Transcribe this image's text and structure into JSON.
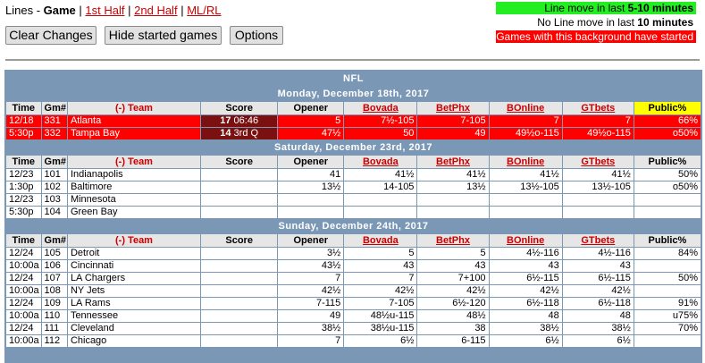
{
  "nav": {
    "lines_prefix": "Lines - ",
    "game": "Game",
    "sep": "|",
    "first_half": "1st Half",
    "second_half": "2nd Half",
    "ml_rl": "ML/RL"
  },
  "buttons": {
    "clear": "Clear Changes",
    "hide": "Hide started games",
    "options": "Options"
  },
  "legend": {
    "line1": "Line move in last 5-10 minutes",
    "line2": "No Line move in last 10 minutes",
    "line3": "Games with this background have started"
  },
  "colors": {
    "recent_move": "#22ee22",
    "started": "#ff0000",
    "section": "#7a97b5",
    "public_highlight": "#ffff00"
  },
  "league": "NFL",
  "headers": {
    "time": "Time",
    "gm": "Gm#",
    "team": "(-) Team",
    "score": "Score",
    "opener": "Opener",
    "bovada": "Bovada",
    "betphx": "BetPhx",
    "bonline": "BOnline",
    "gtbets": "GTbets",
    "public": "Public%"
  },
  "sections": [
    {
      "date": "Monday, December 18th, 2017",
      "games": [
        {
          "started": true,
          "rows": [
            {
              "time": "12/18",
              "gm": "331",
              "team": "Atlanta",
              "score_pts": "17",
              "score_clock": "06:46",
              "opener": "5",
              "bovada": "7½-105",
              "betphx": "7-105",
              "bonline": "7",
              "gtbets": "7",
              "public": "66%"
            },
            {
              "time": "5:30p",
              "gm": "332",
              "team": "Tampa Bay",
              "score_pts": "14",
              "score_clock": "3rd Q",
              "opener": "47½",
              "bovada": "50",
              "betphx": "49",
              "bonline": "49½o-115",
              "gtbets": "49½o-115",
              "public": "o50%"
            }
          ]
        }
      ]
    },
    {
      "date": "Saturday, December 23rd, 2017",
      "games": [
        {
          "started": false,
          "rows": [
            {
              "time": "12/23",
              "gm": "101",
              "team": "Indianapolis",
              "score_pts": "",
              "score_clock": "",
              "opener": "41",
              "bovada": "41½",
              "betphx": "41½",
              "bonline": "41½",
              "gtbets": "41½",
              "public": "50%"
            },
            {
              "time": "1:30p",
              "gm": "102",
              "team": "Baltimore",
              "score_pts": "",
              "score_clock": "",
              "opener": "13½",
              "bovada": "14-105",
              "betphx": "13½",
              "bonline": "13½-105",
              "gtbets": "13½-105",
              "public": "o50%"
            }
          ]
        },
        {
          "started": false,
          "rows": [
            {
              "time": "12/23",
              "gm": "103",
              "team": "Minnesota",
              "score_pts": "",
              "score_clock": "",
              "opener": "",
              "bovada": "",
              "betphx": "",
              "bonline": "",
              "gtbets": "",
              "public": ""
            },
            {
              "time": "5:30p",
              "gm": "104",
              "team": "Green Bay",
              "score_pts": "",
              "score_clock": "",
              "opener": "",
              "bovada": "",
              "betphx": "",
              "bonline": "",
              "gtbets": "",
              "public": ""
            }
          ]
        }
      ]
    },
    {
      "date": "Sunday, December 24th, 2017",
      "games": [
        {
          "started": false,
          "rows": [
            {
              "time": "12/24",
              "gm": "105",
              "team": "Detroit",
              "score_pts": "",
              "score_clock": "",
              "opener": "3½",
              "bovada": "5",
              "betphx": "5",
              "bonline": "4½-116",
              "gtbets": "4½-116",
              "public": "84%"
            },
            {
              "time": "10:00a",
              "gm": "106",
              "team": "Cincinnati",
              "score_pts": "",
              "score_clock": "",
              "opener": "43½",
              "bovada": "43",
              "betphx": "43",
              "bonline": "43",
              "gtbets": "43",
              "public": ""
            }
          ]
        },
        {
          "started": false,
          "rows": [
            {
              "time": "12/24",
              "gm": "107",
              "team": "LA Chargers",
              "score_pts": "",
              "score_clock": "",
              "opener": "7",
              "bovada": "7",
              "betphx": "7+100",
              "bonline": "6½-115",
              "gtbets": "6½-115",
              "public": "50%"
            },
            {
              "time": "10:00a",
              "gm": "108",
              "team": "NY Jets",
              "score_pts": "",
              "score_clock": "",
              "opener": "42½",
              "bovada": "42½",
              "betphx": "42½",
              "bonline": "42½",
              "gtbets": "42½",
              "public": ""
            }
          ]
        },
        {
          "started": false,
          "rows": [
            {
              "time": "12/24",
              "gm": "109",
              "team": "LA Rams",
              "score_pts": "",
              "score_clock": "",
              "opener": "7-115",
              "bovada": "7-105",
              "betphx": "6½-120",
              "bonline": "6½-118",
              "gtbets": "6½-118",
              "public": "91%"
            },
            {
              "time": "10:00a",
              "gm": "110",
              "team": "Tennessee",
              "score_pts": "",
              "score_clock": "",
              "opener": "49",
              "bovada": "48½u-115",
              "betphx": "48½",
              "bonline": "48",
              "gtbets": "48",
              "public": "u75%"
            }
          ]
        },
        {
          "started": false,
          "rows": [
            {
              "time": "12/24",
              "gm": "111",
              "team": "Cleveland",
              "score_pts": "",
              "score_clock": "",
              "opener": "38½",
              "bovada": "38½u-115",
              "betphx": "38",
              "bonline": "38½",
              "gtbets": "38½",
              "public": "70%"
            },
            {
              "time": "10:00a",
              "gm": "112",
              "team": "Chicago",
              "score_pts": "",
              "score_clock": "",
              "opener": "7",
              "bovada": "6½",
              "betphx": "6-115",
              "bonline": "6½",
              "gtbets": "6½",
              "public": ""
            }
          ]
        }
      ]
    }
  ]
}
